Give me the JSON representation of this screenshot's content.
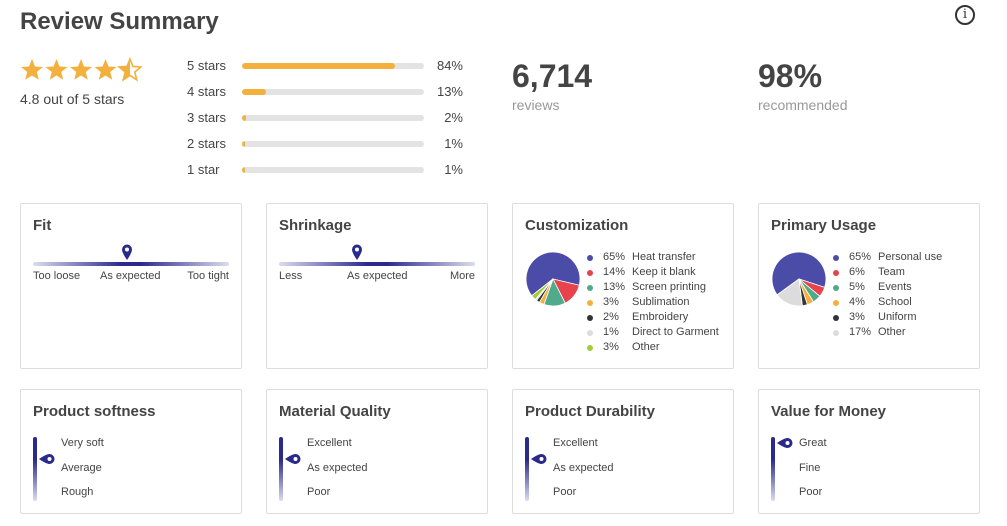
{
  "header": {
    "title": "Review Summary",
    "info_icon": "info-icon"
  },
  "rating": {
    "value": 4.8,
    "max": 5,
    "text": "4.8 out of 5 stars",
    "star_color": "#f3b03d"
  },
  "distribution": [
    {
      "label": "5 stars",
      "percent": 84,
      "percent_text": "84%"
    },
    {
      "label": "4 stars",
      "percent": 13,
      "percent_text": "13%"
    },
    {
      "label": "3 stars",
      "percent": 2,
      "percent_text": "2%"
    },
    {
      "label": "2 stars",
      "percent": 1,
      "percent_text": "1%"
    },
    {
      "label": "1 star",
      "percent": 1,
      "percent_text": "1%"
    }
  ],
  "stats": {
    "reviews": {
      "value": "6,714",
      "caption": "reviews"
    },
    "recommended": {
      "value": "98%",
      "caption": "recommended"
    }
  },
  "fit": {
    "title": "Fit",
    "labels": [
      "Too loose",
      "As expected",
      "Too tight"
    ],
    "position": 0.48
  },
  "shrinkage": {
    "title": "Shrinkage",
    "labels": [
      "Less",
      "As expected",
      "More"
    ],
    "position": 0.4
  },
  "customization": {
    "title": "Customization",
    "items": [
      {
        "pct": "65%",
        "label": "Heat transfer",
        "value": 65,
        "color": "#4b4ba8"
      },
      {
        "pct": "14%",
        "label": "Keep it blank",
        "value": 14,
        "color": "#e8424d"
      },
      {
        "pct": "13%",
        "label": "Screen printing",
        "value": 13,
        "color": "#4fab8c"
      },
      {
        "pct": "3%",
        "label": "Sublimation",
        "value": 3,
        "color": "#f3b03d"
      },
      {
        "pct": "2%",
        "label": "Embroidery",
        "value": 2,
        "color": "#333333"
      },
      {
        "pct": "1%",
        "label": "Direct to Garment",
        "value": 1,
        "color": "#dcdcdc"
      },
      {
        "pct": "3%",
        "label": "Other",
        "value": 3,
        "color": "#a4cc3a"
      }
    ]
  },
  "usage": {
    "title": "Primary Usage",
    "items": [
      {
        "pct": "65%",
        "label": "Personal use",
        "value": 65,
        "color": "#4b4ba8"
      },
      {
        "pct": "6%",
        "label": "Team",
        "value": 6,
        "color": "#e8424d"
      },
      {
        "pct": "5%",
        "label": "Events",
        "value": 5,
        "color": "#4fab8c"
      },
      {
        "pct": "4%",
        "label": "School",
        "value": 4,
        "color": "#f3b03d"
      },
      {
        "pct": "3%",
        "label": "Uniform",
        "value": 3,
        "color": "#333333"
      },
      {
        "pct": "17%",
        "label": "Other",
        "value": 17,
        "color": "#dcdcdc"
      }
    ]
  },
  "softness": {
    "title": "Product softness",
    "labels": [
      "Very soft",
      "Average",
      "Rough"
    ],
    "position": 0.35
  },
  "quality": {
    "title": "Material Quality",
    "labels": [
      "Excellent",
      "As expected",
      "Poor"
    ],
    "position": 0.35
  },
  "durability": {
    "title": "Product Durability",
    "labels": [
      "Excellent",
      "As expected",
      "Poor"
    ],
    "position": 0.35
  },
  "value_money": {
    "title": "Value for Money",
    "labels": [
      "Great",
      "Fine",
      "Poor"
    ],
    "position": 0.1
  },
  "colors": {
    "accent": "#2a2a8c",
    "bar": "#f3b03d"
  }
}
